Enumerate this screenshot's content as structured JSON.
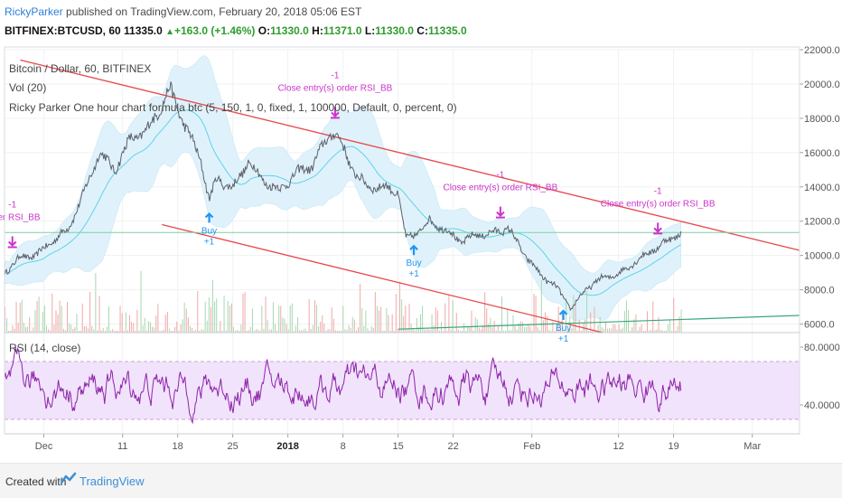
{
  "header": {
    "author": "RickyParker",
    "published_text": "published on TradingView.com, February 20, 2018 05:06 EST",
    "symbol": "BITFINEX:BTCUSD, 60",
    "last": "11335.0",
    "change": "+163.0 (+1.46%)",
    "o_label": "O:",
    "o_value": "11330.0",
    "h_label": "H:",
    "h_value": "11371.0",
    "l_label": "L:",
    "l_value": "11330.0",
    "c_label": "C:",
    "c_value": "11335.0"
  },
  "legend": {
    "main_title": "Bitcoin / Dollar, 60, BITFINEX",
    "vol": "Vol (20)",
    "strategy": "Ricky Parker One hour chart formula btc (5, 150, 1, 0, fixed, 1, 100000, Default, 0, percent, 0)",
    "rsi": "RSI (14, close)"
  },
  "colors": {
    "price": "#5d606b",
    "bollinger_fill": "#dff2fb",
    "bollinger_basis": "#5fd3e8",
    "trendline": "#e8474b",
    "rsi": "#8e24aa",
    "rsi_band": "#f1e3fb",
    "buy": "#2196f3",
    "exit": "#cc33cc",
    "volume_up": "#a7d8b1",
    "volume_down": "#f0a9a9"
  },
  "footer": {
    "created_with": "Created with",
    "brand": "TradingView"
  },
  "chart_data": [
    {
      "type": "line",
      "title": "Bitcoin / Dollar, 60, BITFINEX",
      "x_ticks": [
        "Dec",
        "11",
        "18",
        "25",
        "2018",
        "8",
        "15",
        "22",
        "Feb",
        "12",
        "19",
        "Mar"
      ],
      "x_tick_days": [
        1,
        11,
        18,
        25,
        32,
        39,
        46,
        53,
        63,
        74,
        81,
        91
      ],
      "y_ticks": [
        "6000.0",
        "8000.0",
        "10000.0",
        "12000.0",
        "14000.0",
        "16000.0",
        "18000.0",
        "20000.0",
        "22000.0"
      ],
      "ylim": [
        5500,
        22000
      ],
      "last_price": "11335.0",
      "series": [
        {
          "x": [
            "Nov 26",
            "Nov 28",
            "Nov 30",
            "Dec 2",
            "Dec 4",
            "Dec 6",
            "Dec 8",
            "Dec 10",
            "Dec 12",
            "Dec 14",
            "Dec 16",
            "Dec 17",
            "Dec 19",
            "Dec 21",
            "Dec 22",
            "Dec 23",
            "Dec 25",
            "Dec 27",
            "Dec 29",
            "Dec 31",
            "Jan 2",
            "Jan 4",
            "Jan 6",
            "Jan 7",
            "Jan 9",
            "Jan 11",
            "Jan 13",
            "Jan 15",
            "Jan 16",
            "Jan 17",
            "Jan 19",
            "Jan 21",
            "Jan 23",
            "Jan 25",
            "Jan 27",
            "Jan 29",
            "Jan 31",
            "Feb 2",
            "Feb 4",
            "Feb 6",
            "Feb 8",
            "Feb 10",
            "Feb 12",
            "Feb 14",
            "Feb 16",
            "Feb 18",
            "Feb 20"
          ],
          "values": [
            9000,
            9900,
            10000,
            10800,
            11500,
            13500,
            16000,
            15000,
            16800,
            17200,
            18800,
            19700,
            17500,
            15500,
            13200,
            14500,
            13900,
            15500,
            14300,
            13800,
            14800,
            15200,
            16800,
            17300,
            15200,
            14000,
            14000,
            13700,
            10900,
            11200,
            12000,
            11500,
            10800,
            11200,
            11300,
            11600,
            10100,
            8900,
            8200,
            6900,
            8100,
            8700,
            8900,
            9600,
            10200,
            10800,
            11335
          ]
        }
      ],
      "annotations": [
        {
          "date": "Nov 27",
          "text": "order RSI_BB",
          "qty": "-1",
          "kind": "exit"
        },
        {
          "date": "Dec 22",
          "text": "Buy",
          "qty": "+1",
          "kind": "buy"
        },
        {
          "date": "Jan 7",
          "text": "Close entry(s) order RSI_BB",
          "qty": "-1",
          "kind": "exit"
        },
        {
          "date": "Jan 17",
          "text": "Buy",
          "qty": "+1",
          "kind": "buy"
        },
        {
          "date": "Jan 28",
          "text": "Close entry(s) order RSI_BB",
          "qty": "-1",
          "kind": "exit"
        },
        {
          "date": "Feb 5",
          "text": "Buy",
          "qty": "+1",
          "kind": "buy"
        },
        {
          "date": "Feb 17",
          "text": "Close entry(s) order RSI_BB",
          "qty": "-1",
          "kind": "exit"
        }
      ]
    },
    {
      "type": "line",
      "title": "RSI (14, close)",
      "y_ticks": [
        "40.0000",
        "80.0000"
      ],
      "ylim": [
        20,
        90
      ],
      "band": [
        30,
        70
      ]
    }
  ]
}
